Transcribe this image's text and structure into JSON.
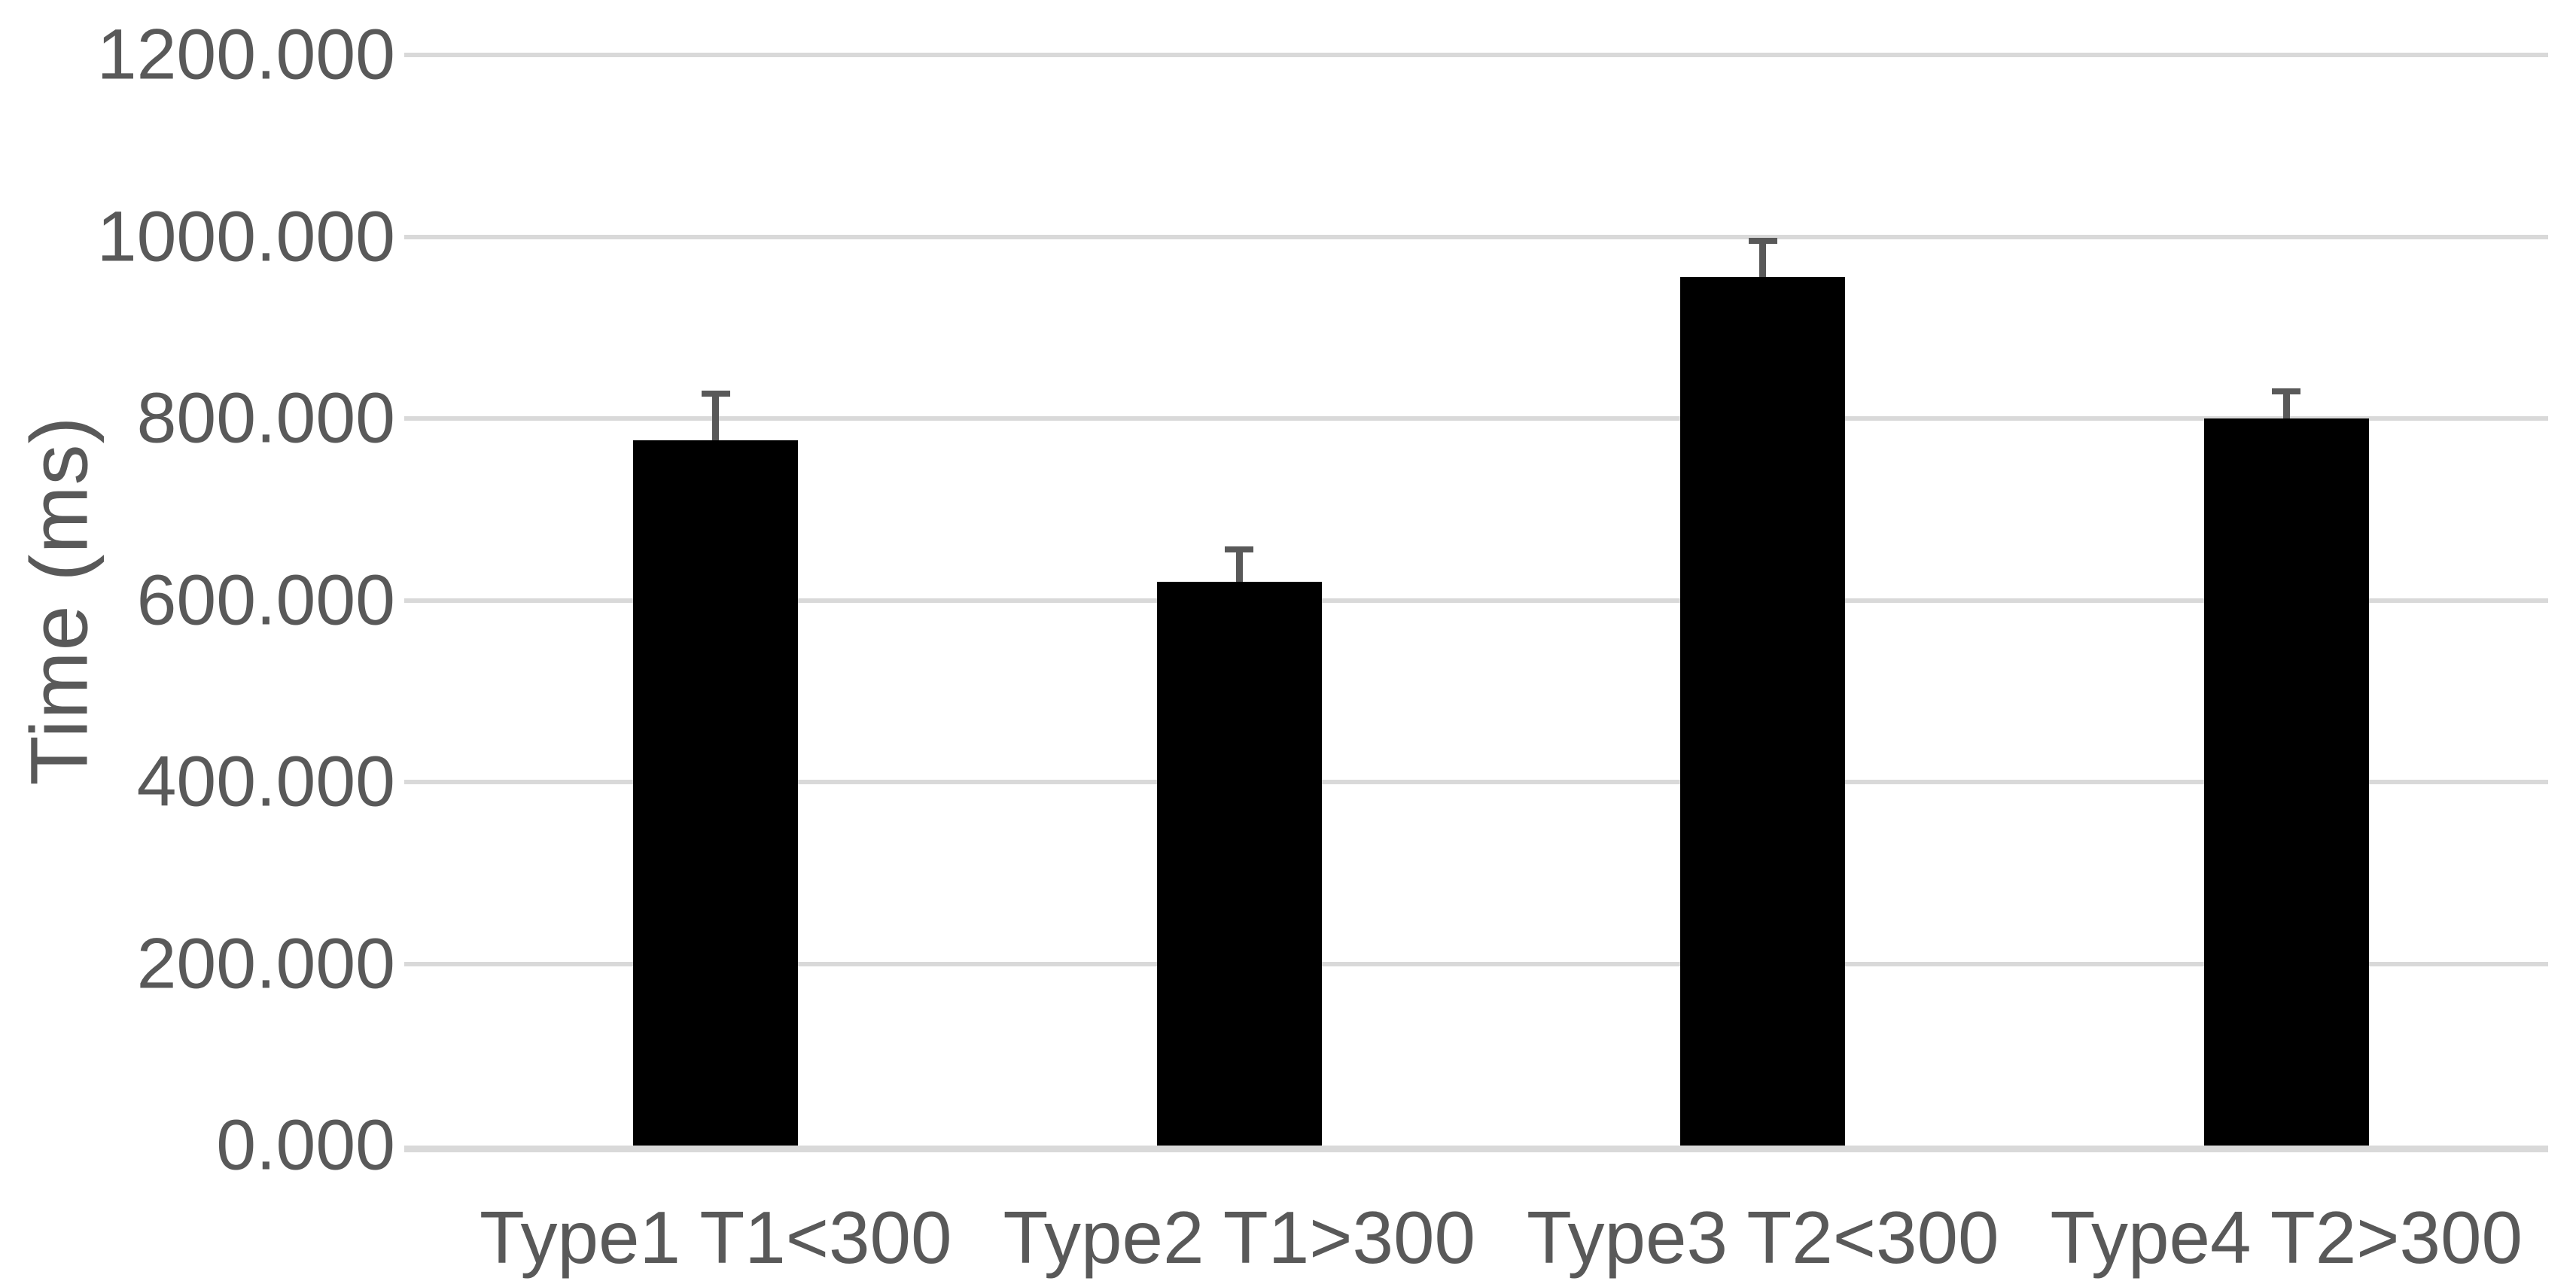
{
  "chart_data": {
    "type": "bar",
    "title": "",
    "xlabel": "",
    "ylabel": "Time (ms)",
    "categories": [
      "Type1 T1<300",
      "Type2 T1>300",
      "Type3 T2<300",
      "Type4 T2>300"
    ],
    "series": [
      {
        "name": "Time",
        "values": [
          776,
          620,
          956,
          800
        ],
        "error_plus": [
          50,
          34,
          38,
          28
        ]
      }
    ],
    "ylim": [
      0,
      1200
    ],
    "y_ticks": [
      {
        "value": 0,
        "label": "0.000"
      },
      {
        "value": 200,
        "label": "200.000"
      },
      {
        "value": 400,
        "label": "400.000"
      },
      {
        "value": 600,
        "label": "600.000"
      },
      {
        "value": 800,
        "label": "800.000"
      },
      {
        "value": 1000,
        "label": "1000.000"
      },
      {
        "value": 1200,
        "label": "1200.000"
      }
    ],
    "grid": true,
    "legend": false,
    "colors": {
      "bar": "#000000",
      "error_bar": "#595959",
      "gridline": "#d9d9d9",
      "axis_line": "#d9d9d9",
      "text": "#595959",
      "background": "#ffffff"
    }
  }
}
